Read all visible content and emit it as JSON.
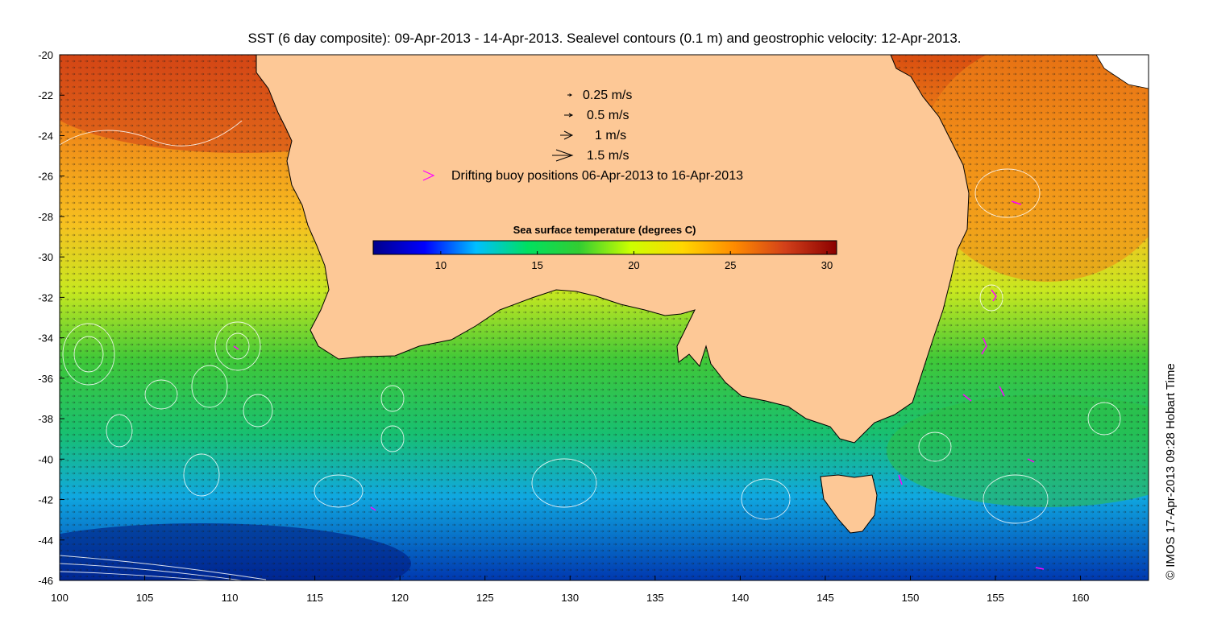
{
  "title": "SST (6 day composite): 09-Apr-2013 - 14-Apr-2013. Sealevel contours (0.1 m) and geostrophic velocity: 12-Apr-2013.",
  "credit": "© IMOS 17-Apr-2013 09:28 Hobart Time",
  "map": {
    "lon_range": [
      100,
      164
    ],
    "lat_range": [
      -46,
      -20
    ],
    "x_ticks": [
      "100",
      "105",
      "110",
      "115",
      "120",
      "125",
      "130",
      "135",
      "140",
      "145",
      "150",
      "155",
      "160"
    ],
    "y_ticks": [
      "-20",
      "-22",
      "-24",
      "-26",
      "-28",
      "-30",
      "-32",
      "-34",
      "-36",
      "-38",
      "-40",
      "-42",
      "-44",
      "-46"
    ],
    "land_color": "#fdc896",
    "ocean_colors": {
      "north": "#e06010",
      "south": "#0030a0"
    }
  },
  "legend": {
    "items": [
      "0.25 m/s",
      "0.5 m/s",
      "1 m/s",
      "1.5 m/s"
    ],
    "buoy_label": "Drifting buoy positions 06-Apr-2013 to 16-Apr-2013",
    "buoy_color": "#ff00ff"
  },
  "colorbar": {
    "title": "Sea surface temperature (degrees C)",
    "range": [
      6.5,
      30.5
    ],
    "ticks": [
      "10",
      "15",
      "20",
      "25",
      "30"
    ],
    "colors": [
      "#00008b",
      "#0000ff",
      "#00bfff",
      "#00e060",
      "#32cd32",
      "#ccff00",
      "#ffd700",
      "#ff8c00",
      "#d2401a",
      "#8b0000"
    ]
  }
}
